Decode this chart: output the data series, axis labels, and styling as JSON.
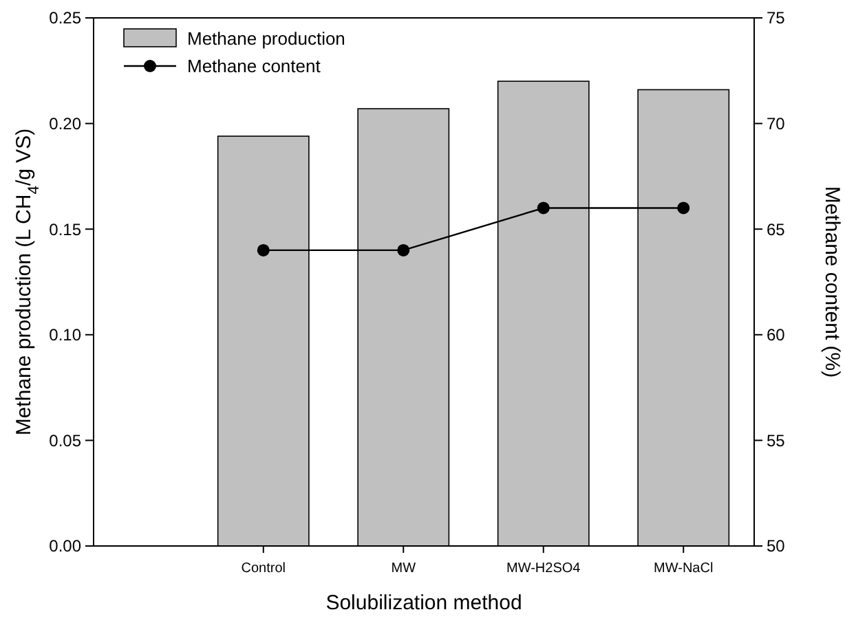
{
  "chart_data": {
    "type": "bar",
    "xlabel": "Solubilization method",
    "ylabel": "Methane production (L CH$_{4}$/g VS)",
    "y2label": "Methane content (%)",
    "categories": [
      "Control",
      "MW",
      "MW-H2SO4",
      "MW-NaCl"
    ],
    "series": [
      {
        "name": "Methane production",
        "color": "#c0c0c0",
        "values": [
          0.194,
          0.207,
          0.22,
          0.216
        ]
      },
      {
        "name": "Methane content",
        "type": "line",
        "axis": "y2",
        "color": "#000000",
        "marker": "circle",
        "values": [
          64,
          64,
          66,
          66
        ]
      }
    ],
    "ylim": [
      0,
      0.25
    ],
    "yticks": [
      {
        "value": 0,
        "label": "0.00"
      },
      {
        "value": 0.05,
        "label": "0.05"
      },
      {
        "value": 0.1,
        "label": "0.10"
      },
      {
        "value": 0.15,
        "label": "0.15"
      },
      {
        "value": 0.2,
        "label": "0.20"
      },
      {
        "value": 0.25,
        "label": "0.25"
      }
    ],
    "y2lim": [
      50,
      75
    ],
    "y2ticks": [
      50,
      55,
      60,
      65,
      70,
      75
    ],
    "legend": "top left",
    "grid": false
  }
}
